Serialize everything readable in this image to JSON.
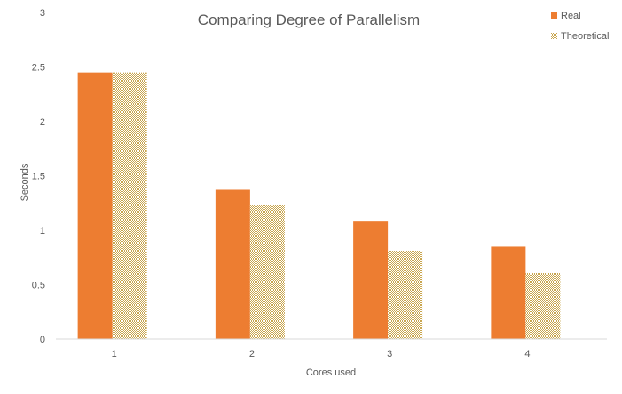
{
  "chart_data": {
    "type": "bar",
    "title": "Comparing Degree of Parallelism",
    "xlabel": "Cores used",
    "ylabel": "Seconds",
    "categories": [
      "1",
      "2",
      "3",
      "4"
    ],
    "ylim": [
      0,
      3
    ],
    "yticks": [
      "0",
      "0.5",
      "1",
      "1.5",
      "2",
      "2.5",
      "3"
    ],
    "grid": false,
    "legend_position": "top-right",
    "series": [
      {
        "name": "Real",
        "values": [
          2.45,
          1.37,
          1.08,
          0.85
        ],
        "color": "#ED7D31",
        "pattern": "solid"
      },
      {
        "name": "Theoretical",
        "values": [
          2.45,
          1.23,
          0.81,
          0.61
        ],
        "color": "#C9A64F",
        "pattern": "checker"
      }
    ]
  }
}
